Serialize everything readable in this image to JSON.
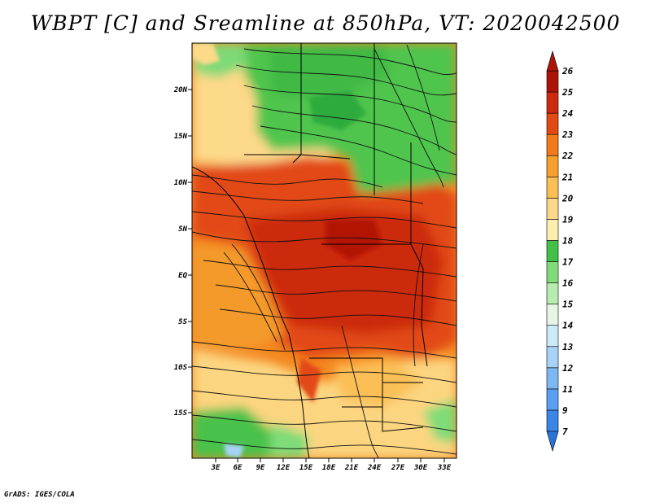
{
  "title": "WBPT [C] and Sreamline at 850hPa, VT: 2020042500",
  "credit": "GrADS: IGES/COLA",
  "lat_ticks": [
    "20N",
    "15N",
    "10N",
    "5N",
    "EQ",
    "5S",
    "10S",
    "15S"
  ],
  "lon_ticks": [
    "3E",
    "6E",
    "9E",
    "12E",
    "15E",
    "18E",
    "21E",
    "24E",
    "27E",
    "30E",
    "33E"
  ],
  "colorbar": {
    "levels": [
      "7",
      "9",
      "11",
      "12",
      "13",
      "14",
      "15",
      "16",
      "17",
      "18",
      "19",
      "20",
      "21",
      "22",
      "23",
      "24",
      "25",
      "26"
    ],
    "colors": [
      "#2a73d8",
      "#3a86e6",
      "#5a9ff0",
      "#7db8f5",
      "#a8d2f8",
      "#cdeafa",
      "#e6f6e6",
      "#b6ecb0",
      "#7fdc78",
      "#44c048",
      "#fdeeb0",
      "#fcd88a",
      "#fbbf55",
      "#f79f2c",
      "#f17a1c",
      "#e24a14",
      "#cc2a0e",
      "#ad1408"
    ]
  }
}
